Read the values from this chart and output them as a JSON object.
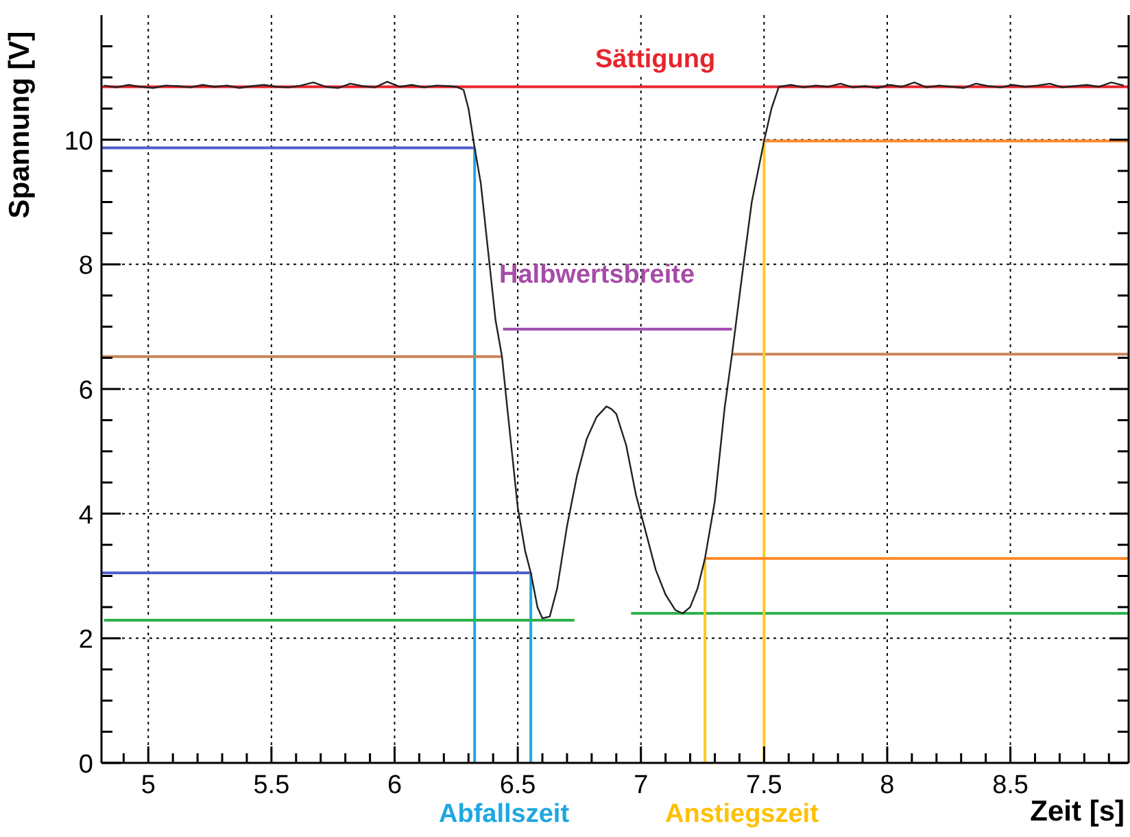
{
  "chart_data": {
    "type": "line",
    "xlabel": "Zeit [s]",
    "ylabel": "Spannung [V]",
    "xlim": [
      4.81,
      8.98
    ],
    "ylim": [
      0,
      12
    ],
    "xticks": [
      {
        "value": 4.9,
        "label": null
      },
      5,
      {
        "value": 5.1,
        "label": null
      },
      {
        "value": 5.2,
        "label": null
      },
      {
        "value": 5.3,
        "label": null
      },
      {
        "value": 5.4,
        "label": null
      },
      5.5,
      {
        "value": 5.6,
        "label": null
      },
      {
        "value": 5.7,
        "label": null
      },
      {
        "value": 5.8,
        "label": null
      },
      {
        "value": 5.9,
        "label": null
      },
      6,
      {
        "value": 6.1,
        "label": null
      },
      {
        "value": 6.2,
        "label": null
      },
      {
        "value": 6.3,
        "label": null
      },
      {
        "value": 6.4,
        "label": null
      },
      6.5,
      {
        "value": 6.6,
        "label": null
      },
      {
        "value": 6.7,
        "label": null
      },
      {
        "value": 6.8,
        "label": null
      },
      {
        "value": 6.9,
        "label": null
      },
      7,
      {
        "value": 7.1,
        "label": null
      },
      {
        "value": 7.2,
        "label": null
      },
      {
        "value": 7.3,
        "label": null
      },
      {
        "value": 7.4,
        "label": null
      },
      7.5,
      {
        "value": 7.6,
        "label": null
      },
      {
        "value": 7.7,
        "label": null
      },
      {
        "value": 7.8,
        "label": null
      },
      {
        "value": 7.9,
        "label": null
      },
      8,
      {
        "value": 8.1,
        "label": null
      },
      {
        "value": 8.2,
        "label": null
      },
      {
        "value": 8.3,
        "label": null
      },
      {
        "value": 8.4,
        "label": null
      },
      8.5,
      {
        "value": 8.6,
        "label": null
      },
      {
        "value": 8.7,
        "label": null
      },
      {
        "value": 8.8,
        "label": null
      },
      {
        "value": 8.9,
        "label": null
      }
    ],
    "yticks": [
      0,
      {
        "value": 0.5,
        "label": null
      },
      {
        "value": 1,
        "label": null
      },
      {
        "value": 1.5,
        "label": null
      },
      2,
      {
        "value": 2.5,
        "label": null
      },
      {
        "value": 3,
        "label": null
      },
      {
        "value": 3.5,
        "label": null
      },
      4,
      {
        "value": 4.5,
        "label": null
      },
      {
        "value": 5,
        "label": null
      },
      {
        "value": 5.5,
        "label": null
      },
      6,
      {
        "value": 6.5,
        "label": null
      },
      {
        "value": 7,
        "label": null
      },
      {
        "value": 7.5,
        "label": null
      },
      8,
      {
        "value": 8.5,
        "label": null
      },
      {
        "value": 9,
        "label": null
      },
      {
        "value": 9.5,
        "label": null
      },
      10,
      {
        "value": 10.5,
        "label": null
      },
      {
        "value": 11,
        "label": null
      },
      {
        "value": 11.5,
        "label": null
      }
    ],
    "grid": true,
    "marker": "none",
    "line_style": "solid",
    "series": [
      {
        "color": "#222222",
        "x": [
          4.82,
          4.87,
          4.92,
          4.97,
          5.02,
          5.07,
          5.12,
          5.17,
          5.22,
          5.27,
          5.32,
          5.37,
          5.42,
          5.47,
          5.52,
          5.57,
          5.62,
          5.67,
          5.72,
          5.77,
          5.82,
          5.87,
          5.92,
          5.97,
          6.02,
          6.07,
          6.12,
          6.17,
          6.22,
          6.25,
          6.28,
          6.3,
          6.325,
          6.35,
          6.38,
          6.41,
          6.436,
          6.46,
          6.5,
          6.53,
          6.553,
          6.58,
          6.6,
          6.63,
          6.66,
          6.7,
          6.74,
          6.78,
          6.82,
          6.86,
          6.88,
          6.9,
          6.94,
          6.98,
          7.02,
          7.06,
          7.1,
          7.14,
          7.17,
          7.2,
          7.23,
          7.26,
          7.3,
          7.34,
          7.37,
          7.41,
          7.45,
          7.5,
          7.53,
          7.56,
          7.61,
          7.66,
          7.71,
          7.76,
          7.81,
          7.86,
          7.91,
          7.96,
          8.01,
          8.06,
          8.11,
          8.16,
          8.21,
          8.26,
          8.31,
          8.36,
          8.41,
          8.46,
          8.51,
          8.56,
          8.61,
          8.66,
          8.71,
          8.76,
          8.81,
          8.86,
          8.91,
          8.96
        ],
        "values": [
          10.87,
          10.84,
          10.88,
          10.85,
          10.83,
          10.87,
          10.86,
          10.84,
          10.88,
          10.85,
          10.87,
          10.83,
          10.86,
          10.88,
          10.85,
          10.84,
          10.87,
          10.92,
          10.85,
          10.83,
          10.9,
          10.86,
          10.84,
          10.93,
          10.85,
          10.88,
          10.84,
          10.87,
          10.86,
          10.85,
          10.8,
          10.5,
          9.87,
          9.3,
          8.2,
          7.1,
          6.52,
          5.6,
          4.1,
          3.4,
          3.05,
          2.5,
          2.32,
          2.35,
          2.8,
          3.8,
          4.6,
          5.2,
          5.55,
          5.72,
          5.68,
          5.6,
          5.1,
          4.3,
          3.7,
          3.1,
          2.7,
          2.45,
          2.4,
          2.5,
          2.8,
          3.28,
          4.2,
          5.7,
          6.56,
          7.8,
          9.0,
          9.98,
          10.5,
          10.85,
          10.88,
          10.84,
          10.87,
          10.85,
          10.9,
          10.84,
          10.86,
          10.83,
          10.88,
          10.85,
          10.92,
          10.84,
          10.87,
          10.85,
          10.83,
          10.9,
          10.86,
          10.84,
          10.88,
          10.85,
          10.87,
          10.9,
          10.84,
          10.86,
          10.88,
          10.85,
          10.92,
          10.87
        ]
      },
      {
        "color": "#e8242c",
        "x": [
          4.81,
          8.98
        ],
        "values": [
          10.85,
          10.85
        ]
      },
      {
        "color": "#4f5fcf",
        "x": [
          4.81,
          6.325
        ],
        "values": [
          9.87,
          9.87
        ]
      },
      {
        "color": "#1ea7e1",
        "x": [
          6.325,
          6.325
        ],
        "values": [
          0,
          9.87
        ]
      },
      {
        "color": "#4f5fcf",
        "x": [
          4.81,
          6.553
        ],
        "values": [
          3.05,
          3.05
        ]
      },
      {
        "color": "#1ea7e1",
        "x": [
          6.553,
          6.553
        ],
        "values": [
          0,
          3.05
        ]
      },
      {
        "color": "#c8845a",
        "x": [
          4.81,
          6.436
        ],
        "values": [
          6.52,
          6.52
        ]
      },
      {
        "color": "#c8845a",
        "x": [
          7.37,
          8.98
        ],
        "values": [
          6.56,
          6.56
        ]
      },
      {
        "color": "#a04cae",
        "x": [
          6.44,
          7.37
        ],
        "values": [
          6.96,
          6.96
        ]
      },
      {
        "color": "#2bb24c",
        "x": [
          4.82,
          6.73
        ],
        "values": [
          2.29,
          2.29
        ]
      },
      {
        "color": "#2bb24c",
        "x": [
          6.96,
          8.98
        ],
        "values": [
          2.4,
          2.4
        ]
      },
      {
        "color": "#ff8a2a",
        "x": [
          7.5,
          8.98
        ],
        "values": [
          9.98,
          9.98
        ]
      },
      {
        "color": "#ffc81e",
        "x": [
          7.5,
          7.5
        ],
        "values": [
          0,
          9.98
        ]
      },
      {
        "color": "#ff8a2a",
        "x": [
          7.26,
          8.98
        ],
        "values": [
          3.28,
          3.28
        ]
      },
      {
        "color": "#ffc81e",
        "x": [
          7.26,
          7.26
        ],
        "values": [
          0,
          3.28
        ]
      }
    ],
    "annotations": [
      "Sättigung",
      "Halbwertsbreite",
      "Abfallszeit",
      "Anstiegszeit"
    ]
  }
}
